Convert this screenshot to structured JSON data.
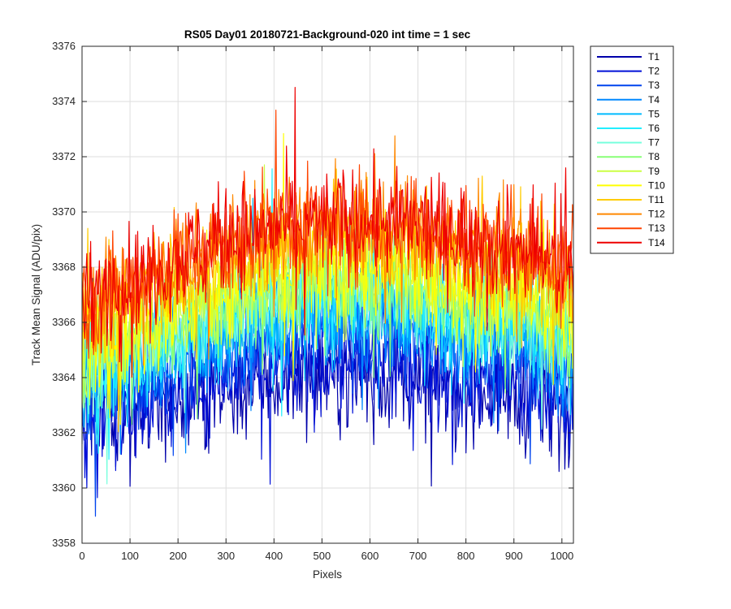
{
  "chart_data": {
    "type": "line",
    "title": "RS05 Day01 20180721-Background-020 int time = 1 sec",
    "xlabel": "Pixels",
    "ylabel": "Track Mean Signal (ADU/pix)",
    "xlim": [
      0,
      1024
    ],
    "ylim": [
      3358,
      3376
    ],
    "xticks": [
      "0",
      "100",
      "200",
      "300",
      "400",
      "500",
      "600",
      "700",
      "800",
      "900",
      "1000"
    ],
    "yticks": [
      "3358",
      "3360",
      "3362",
      "3364",
      "3366",
      "3368",
      "3370",
      "3372",
      "3374",
      "3376"
    ],
    "grid": true,
    "legend_position": "outside-top-right",
    "x": [
      0,
      64,
      128,
      192,
      256,
      320,
      384,
      448,
      512,
      576,
      640,
      704,
      768,
      832,
      896,
      960,
      1024
    ],
    "series": [
      {
        "name": "T1",
        "color": "#0000aa",
        "values": [
          3363.0,
          3363.0,
          3362.9,
          3363.1,
          3363.4,
          3363.6,
          3363.8,
          3364.0,
          3364.1,
          3364.1,
          3364.0,
          3363.9,
          3363.8,
          3363.6,
          3363.3,
          3363.0,
          3362.6
        ]
      },
      {
        "name": "T2",
        "color": "#0010d8",
        "values": [
          3363.2,
          3363.3,
          3363.3,
          3363.5,
          3363.8,
          3364.0,
          3364.2,
          3364.4,
          3364.5,
          3364.5,
          3364.4,
          3364.3,
          3364.2,
          3364.0,
          3363.7,
          3363.4,
          3363.0
        ]
      },
      {
        "name": "T3",
        "color": "#0044ee",
        "values": [
          3363.5,
          3363.8,
          3364.0,
          3364.4,
          3364.8,
          3365.1,
          3365.4,
          3365.6,
          3365.7,
          3365.7,
          3365.6,
          3365.5,
          3365.3,
          3365.1,
          3364.8,
          3364.4,
          3364.0
        ]
      },
      {
        "name": "T4",
        "color": "#0088ff",
        "values": [
          3363.8,
          3364.2,
          3364.5,
          3364.9,
          3365.3,
          3365.6,
          3365.9,
          3366.1,
          3366.2,
          3366.2,
          3366.1,
          3366.0,
          3365.8,
          3365.6,
          3365.3,
          3364.9,
          3364.4
        ]
      },
      {
        "name": "T5",
        "color": "#00bbff",
        "values": [
          3364.0,
          3364.5,
          3364.9,
          3365.3,
          3365.7,
          3366.0,
          3366.3,
          3366.5,
          3366.6,
          3366.6,
          3366.5,
          3366.4,
          3366.2,
          3366.0,
          3365.7,
          3365.3,
          3364.8
        ]
      },
      {
        "name": "T6",
        "color": "#22eeff",
        "values": [
          3364.2,
          3364.7,
          3365.1,
          3365.5,
          3365.9,
          3366.3,
          3366.6,
          3366.8,
          3366.9,
          3366.9,
          3366.8,
          3366.7,
          3366.5,
          3366.3,
          3366.0,
          3365.6,
          3365.1
        ]
      },
      {
        "name": "T7",
        "color": "#77ffdd",
        "values": [
          3364.4,
          3364.9,
          3365.3,
          3365.8,
          3366.2,
          3366.5,
          3366.8,
          3367.0,
          3367.1,
          3367.1,
          3367.0,
          3366.9,
          3366.7,
          3366.5,
          3366.2,
          3365.8,
          3365.3
        ]
      },
      {
        "name": "T8",
        "color": "#88ff77",
        "values": [
          3364.6,
          3365.1,
          3365.5,
          3366.0,
          3366.4,
          3366.8,
          3367.1,
          3367.3,
          3367.4,
          3367.4,
          3367.3,
          3367.2,
          3367.0,
          3366.8,
          3366.5,
          3366.1,
          3365.6
        ]
      },
      {
        "name": "T9",
        "color": "#ccff44",
        "values": [
          3364.9,
          3365.4,
          3365.8,
          3366.3,
          3366.7,
          3367.1,
          3367.4,
          3367.6,
          3367.7,
          3367.7,
          3367.6,
          3367.5,
          3367.3,
          3367.1,
          3366.8,
          3366.4,
          3365.9
        ]
      },
      {
        "name": "T10",
        "color": "#ffff00",
        "values": [
          3365.3,
          3365.8,
          3366.2,
          3366.7,
          3367.1,
          3367.5,
          3367.8,
          3368.0,
          3368.1,
          3368.1,
          3368.0,
          3367.9,
          3367.7,
          3367.5,
          3367.2,
          3366.8,
          3366.3
        ]
      },
      {
        "name": "T11",
        "color": "#ffcc00",
        "values": [
          3366.0,
          3366.6,
          3367.1,
          3367.6,
          3368.0,
          3368.4,
          3368.7,
          3368.9,
          3369.0,
          3369.0,
          3368.9,
          3368.8,
          3368.6,
          3368.4,
          3368.1,
          3367.6,
          3367.1
        ]
      },
      {
        "name": "T12",
        "color": "#ff8800",
        "values": [
          3366.4,
          3367.0,
          3367.5,
          3368.0,
          3368.4,
          3368.8,
          3369.1,
          3369.3,
          3369.4,
          3369.4,
          3369.3,
          3369.2,
          3369.0,
          3368.8,
          3368.5,
          3368.0,
          3367.5
        ]
      },
      {
        "name": "T13",
        "color": "#ff4400",
        "values": [
          3366.6,
          3367.2,
          3367.7,
          3368.2,
          3368.6,
          3369.0,
          3369.3,
          3369.5,
          3369.6,
          3369.6,
          3369.5,
          3369.4,
          3369.2,
          3369.0,
          3368.7,
          3368.2,
          3367.7
        ]
      },
      {
        "name": "T14",
        "color": "#ee0000",
        "values": [
          3366.7,
          3367.3,
          3367.8,
          3368.3,
          3368.7,
          3369.1,
          3369.4,
          3369.6,
          3369.7,
          3369.7,
          3369.6,
          3369.5,
          3369.3,
          3369.1,
          3368.8,
          3368.3,
          3367.8
        ]
      }
    ]
  }
}
